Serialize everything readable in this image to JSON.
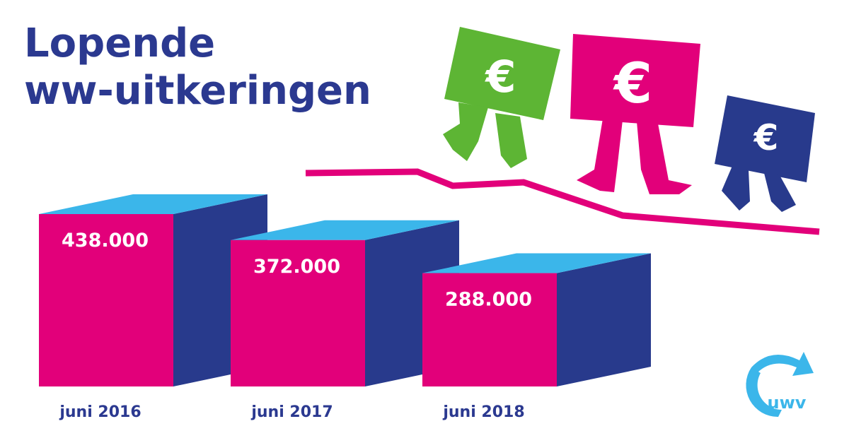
{
  "chart_data": {
    "type": "bar3d",
    "title": [
      "Lopende",
      "ww-uitkeringen"
    ],
    "categories": [
      "juni 2016",
      "juni 2017",
      "juni 2018"
    ],
    "values": [
      438000,
      372000,
      288000
    ],
    "value_labels": [
      "438.000",
      "372.000",
      "288.000"
    ],
    "color": "#e2007a",
    "side_color": "#283a8c",
    "top_color": "#3bb6ea",
    "annotations": [
      "€",
      "€",
      "€",
      "uwv"
    ]
  }
}
